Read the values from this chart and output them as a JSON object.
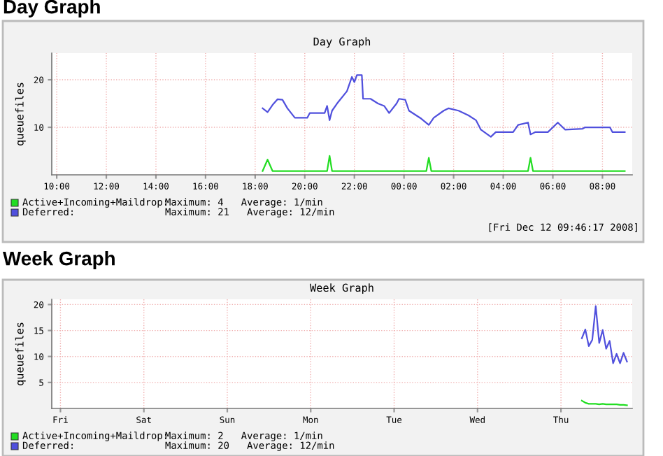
{
  "chart_data": [
    {
      "type": "line",
      "title": "Day Graph",
      "subtitle": "Day Graph",
      "ylabel": "queuefiles",
      "xlim": [
        "2008-12-11T09:48",
        "2008-12-12T09:12"
      ],
      "ylim": [
        0,
        25.6
      ],
      "xticks": [
        {
          "value": "2008-12-11T10:00",
          "label": "10:00"
        },
        {
          "value": "2008-12-11T12:00",
          "label": "12:00"
        },
        {
          "value": "2008-12-11T14:00",
          "label": "14:00"
        },
        {
          "value": "2008-12-11T16:00",
          "label": "16:00"
        },
        {
          "value": "2008-12-11T18:00",
          "label": "18:00"
        },
        {
          "value": "2008-12-11T20:00",
          "label": "20:00"
        },
        {
          "value": "2008-12-11T22:00",
          "label": "22:00"
        },
        {
          "value": "2008-12-12T00:00",
          "label": "00:00"
        },
        {
          "value": "2008-12-12T02:00",
          "label": "02:00"
        },
        {
          "value": "2008-12-12T04:00",
          "label": "04:00"
        },
        {
          "value": "2008-12-12T06:00",
          "label": "06:00"
        },
        {
          "value": "2008-12-12T08:00",
          "label": "08:00"
        }
      ],
      "yticks": [
        10,
        20
      ],
      "grid": true,
      "legend": "bottom",
      "series": [
        {
          "name": "Active+Incoming+Maildrop:",
          "color": "#22dd22",
          "x": [
            "2008-12-11T18:18",
            "2008-12-11T18:30",
            "2008-12-11T18:42",
            "2008-12-11T19:00",
            "2008-12-11T20:00",
            "2008-12-11T20:54",
            "2008-12-11T21:00",
            "2008-12-11T21:06",
            "2008-12-11T22:00",
            "2008-12-11T23:00",
            "2008-12-12T00:00",
            "2008-12-12T00:54",
            "2008-12-12T01:00",
            "2008-12-12T01:06",
            "2008-12-12T02:00",
            "2008-12-12T03:00",
            "2008-12-12T04:00",
            "2008-12-12T05:00",
            "2008-12-12T05:06",
            "2008-12-12T05:12",
            "2008-12-12T06:00",
            "2008-12-12T07:00",
            "2008-12-12T08:00",
            "2008-12-12T08:54"
          ],
          "values": [
            0.8,
            3.2,
            0.8,
            0.8,
            0.8,
            0.8,
            4,
            0.8,
            0.8,
            0.8,
            0.8,
            0.8,
            3.6,
            0.8,
            0.8,
            0.8,
            0.8,
            0.8,
            3.6,
            0.8,
            0.8,
            0.8,
            0.8,
            0.8
          ]
        },
        {
          "name": "Deferred:",
          "color": "#5050dd",
          "x": [
            "2008-12-11T18:18",
            "2008-12-11T18:30",
            "2008-12-11T18:42",
            "2008-12-11T18:54",
            "2008-12-11T19:06",
            "2008-12-11T19:18",
            "2008-12-11T19:36",
            "2008-12-11T20:06",
            "2008-12-11T20:12",
            "2008-12-11T20:48",
            "2008-12-11T20:54",
            "2008-12-11T21:00",
            "2008-12-11T21:06",
            "2008-12-11T21:18",
            "2008-12-11T21:42",
            "2008-12-11T21:54",
            "2008-12-11T22:00",
            "2008-12-11T22:06",
            "2008-12-11T22:18",
            "2008-12-11T22:21",
            "2008-12-11T22:39",
            "2008-12-11T22:57",
            "2008-12-11T23:12",
            "2008-12-11T23:24",
            "2008-12-11T23:42",
            "2008-12-11T23:48",
            "2008-12-12T00:03",
            "2008-12-12T00:12",
            "2008-12-12T00:42",
            "2008-12-12T01:00",
            "2008-12-12T01:12",
            "2008-12-12T01:36",
            "2008-12-12T01:48",
            "2008-12-12T02:12",
            "2008-12-12T02:36",
            "2008-12-12T02:54",
            "2008-12-12T03:06",
            "2008-12-12T03:30",
            "2008-12-12T03:42",
            "2008-12-12T04:24",
            "2008-12-12T04:36",
            "2008-12-12T05:00",
            "2008-12-12T05:06",
            "2008-12-12T05:18",
            "2008-12-12T05:48",
            "2008-12-12T06:12",
            "2008-12-12T06:30",
            "2008-12-12T07:12",
            "2008-12-12T07:18",
            "2008-12-12T08:18",
            "2008-12-12T08:24",
            "2008-12-12T08:54"
          ],
          "values": [
            14,
            13.2,
            14.7,
            15.9,
            15.8,
            14,
            12,
            12,
            13,
            13,
            14.5,
            11.5,
            13.5,
            15,
            17.6,
            20.6,
            19.5,
            21,
            21,
            16,
            16,
            15,
            14.5,
            13,
            15,
            16,
            15.8,
            13.5,
            11.8,
            10.5,
            12,
            13.5,
            14,
            13.5,
            12.5,
            11.5,
            9.5,
            8,
            9,
            9,
            10.5,
            11,
            8.5,
            9,
            9,
            11,
            9.5,
            9.7,
            10,
            10,
            9,
            9
          ]
        }
      ],
      "annotations": [
        "Maximum: 4   Average: 1/min",
        "Maximum: 21   Average: 12/min",
        "[Fri Dec 12 09:46:17 2008]"
      ]
    },
    {
      "type": "line",
      "title": "Week Graph",
      "subtitle": "Week Graph",
      "ylabel": "queuefiles",
      "ylim": [
        0,
        21
      ],
      "categories": [
        null,
        null,
        "Fri",
        null,
        null,
        null,
        null,
        null,
        null,
        null,
        null,
        null,
        null,
        null,
        null,
        null,
        null,
        null,
        null,
        null,
        null,
        null,
        null,
        null,
        null,
        null,
        "Sat",
        null,
        null,
        null,
        null,
        null,
        null,
        null,
        null,
        null,
        null,
        null,
        null,
        null,
        null,
        null,
        null,
        null,
        null,
        null,
        null,
        null,
        null,
        null,
        "Sun",
        null,
        null,
        null,
        null,
        null,
        null,
        null,
        null,
        null,
        null,
        null,
        null,
        null,
        null,
        null,
        null,
        null,
        null,
        null,
        null,
        null,
        null,
        null,
        "Mon",
        null,
        null,
        null,
        null,
        null,
        null,
        null,
        null,
        null,
        null,
        null,
        null,
        null,
        null,
        null,
        null,
        null,
        null,
        null,
        null,
        null,
        null,
        null,
        "Tue",
        null,
        null,
        null,
        null,
        null,
        null,
        null,
        null,
        null,
        null,
        null,
        null,
        null,
        null,
        null,
        null,
        null,
        null,
        null,
        null,
        null,
        null,
        null,
        "Wed",
        null,
        null,
        null,
        null,
        null,
        null,
        null,
        null,
        null,
        null,
        null,
        null,
        null,
        null,
        null,
        null,
        null,
        null,
        null,
        null,
        null,
        null,
        null,
        "Thu",
        null,
        null,
        null,
        null,
        null,
        null,
        null,
        null,
        null,
        null,
        null,
        null,
        null,
        null,
        null,
        null,
        null,
        null,
        null,
        null
      ],
      "yticks": [
        5,
        10,
        15,
        20
      ],
      "grid": true,
      "legend": "bottom",
      "series": [
        {
          "name": "Active+Incoming+Maildrop:",
          "color": "#22dd22",
          "values": [
            null,
            null,
            null,
            null,
            null,
            null,
            null,
            null,
            null,
            null,
            null,
            null,
            null,
            null,
            null,
            null,
            null,
            null,
            null,
            null,
            null,
            null,
            null,
            null,
            null,
            null,
            null,
            null,
            null,
            null,
            null,
            null,
            null,
            null,
            null,
            null,
            null,
            null,
            null,
            null,
            null,
            null,
            null,
            null,
            null,
            null,
            null,
            null,
            null,
            null,
            null,
            null,
            null,
            null,
            null,
            null,
            null,
            null,
            null,
            null,
            null,
            null,
            null,
            null,
            null,
            null,
            null,
            null,
            null,
            null,
            null,
            null,
            null,
            null,
            null,
            null,
            null,
            null,
            null,
            null,
            null,
            null,
            null,
            null,
            null,
            null,
            null,
            null,
            null,
            null,
            null,
            null,
            null,
            null,
            null,
            null,
            null,
            null,
            null,
            null,
            null,
            null,
            null,
            null,
            null,
            null,
            null,
            null,
            null,
            null,
            null,
            null,
            null,
            null,
            null,
            null,
            null,
            null,
            null,
            null,
            null,
            null,
            null,
            null,
            null,
            null,
            null,
            null,
            null,
            null,
            null,
            null,
            null,
            null,
            null,
            null,
            null,
            null,
            null,
            null,
            null,
            null,
            null,
            null,
            null,
            null,
            null,
            null,
            null,
            null,
            null,
            null,
            1.5,
            1.1,
            0.9,
            0.9,
            0.9,
            0.8,
            0.9,
            0.8,
            0.8,
            0.8,
            0.8,
            0.7,
            0.7,
            0.6,
            null
          ]
        },
        {
          "name": "Deferred:",
          "color": "#5050dd",
          "values": [
            null,
            null,
            null,
            null,
            null,
            null,
            null,
            null,
            null,
            null,
            null,
            null,
            null,
            null,
            null,
            null,
            null,
            null,
            null,
            null,
            null,
            null,
            null,
            null,
            null,
            null,
            null,
            null,
            null,
            null,
            null,
            null,
            null,
            null,
            null,
            null,
            null,
            null,
            null,
            null,
            null,
            null,
            null,
            null,
            null,
            null,
            null,
            null,
            null,
            null,
            null,
            null,
            null,
            null,
            null,
            null,
            null,
            null,
            null,
            null,
            null,
            null,
            null,
            null,
            null,
            null,
            null,
            null,
            null,
            null,
            null,
            null,
            null,
            null,
            null,
            null,
            null,
            null,
            null,
            null,
            null,
            null,
            null,
            null,
            null,
            null,
            null,
            null,
            null,
            null,
            null,
            null,
            null,
            null,
            null,
            null,
            null,
            null,
            null,
            null,
            null,
            null,
            null,
            null,
            null,
            null,
            null,
            null,
            null,
            null,
            null,
            null,
            null,
            null,
            null,
            null,
            null,
            null,
            null,
            null,
            null,
            null,
            null,
            null,
            null,
            null,
            null,
            null,
            null,
            null,
            null,
            null,
            null,
            null,
            null,
            null,
            null,
            null,
            null,
            null,
            null,
            null,
            null,
            null,
            null,
            null,
            null,
            null,
            null,
            null,
            null,
            null,
            13.5,
            15.2,
            12,
            13.2,
            19.7,
            12.6,
            15.1,
            11.5,
            13,
            8.7,
            10.5,
            8.7,
            10.7,
            9,
            null
          ]
        }
      ],
      "annotations": [
        "Maximum: 2   Average: 1/min",
        "Maximum: 20   Average: 12/min"
      ]
    }
  ]
}
